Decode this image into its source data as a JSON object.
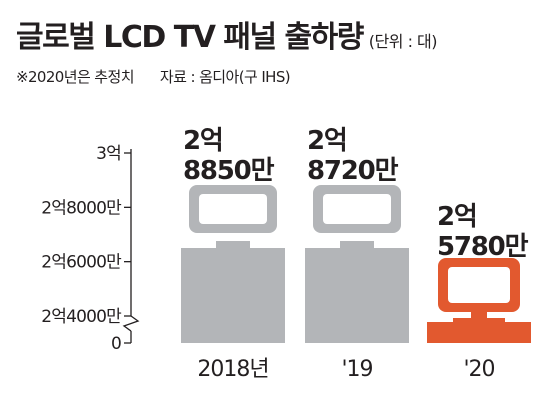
{
  "header": {
    "title": "글로벌 LCD TV 패널 출하량",
    "unit": "(단위 : 대)",
    "note": "※2020년은 추정치",
    "source": "자료 : 옴디아(구 IHS)"
  },
  "colors": {
    "bar": "#b3b5b8",
    "highlight": "#e2592f",
    "text": "#231f20",
    "axis": "#231f20"
  },
  "chart_data": {
    "type": "bar",
    "title": "글로벌 LCD TV 패널 출하량",
    "categories": [
      "2018년",
      "'19",
      "'20"
    ],
    "values": [
      288500000,
      287200000,
      257800000
    ],
    "value_labels": [
      [
        "2억",
        "8850만"
      ],
      [
        "2억",
        "8720만"
      ],
      [
        "2억",
        "5780만"
      ]
    ],
    "y_ticks": [
      {
        "value": 0,
        "label": "0"
      },
      {
        "value": 240000000,
        "label": "2억4000만"
      },
      {
        "value": 260000000,
        "label": "2억6000만"
      },
      {
        "value": 280000000,
        "label": "2억8000만"
      },
      {
        "value": 300000000,
        "label": "3억"
      }
    ],
    "ylim": [
      0,
      300000000
    ],
    "axis_break": true,
    "highlight_index": 2,
    "grid": false,
    "legend": "none",
    "icon": "tv-icon"
  }
}
